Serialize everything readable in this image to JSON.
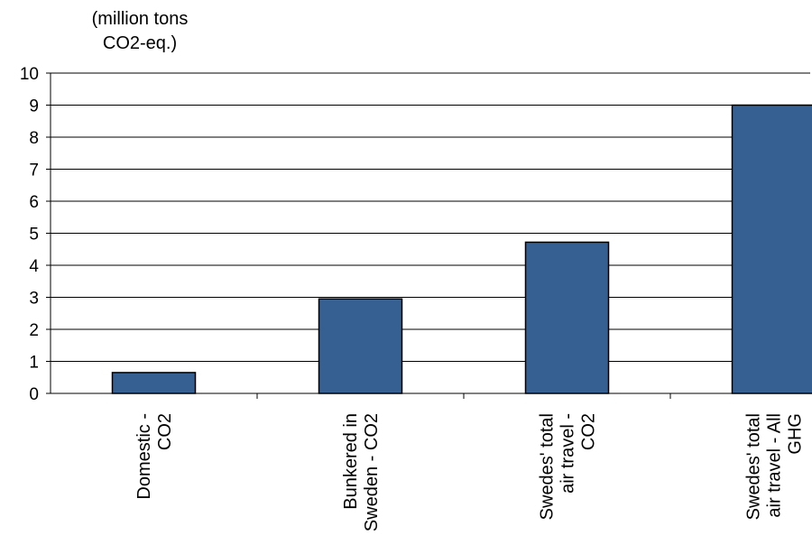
{
  "chart_data": {
    "type": "bar",
    "ylabel": [
      "(million tons",
      "CO2-eq.)"
    ],
    "xlabel": "",
    "ylim": [
      0,
      10
    ],
    "yticks": [
      0,
      1,
      2,
      3,
      4,
      5,
      6,
      7,
      8,
      9,
      10
    ],
    "grid": true,
    "bar_color": "#376092",
    "categories": [
      [
        "Domestic -",
        "CO2"
      ],
      [
        "Bunkered in",
        "Sweden - CO2"
      ],
      [
        "Swedes' total",
        "air travel -",
        "CO2"
      ],
      [
        "Swedes' total",
        "air travel - All",
        "GHG"
      ]
    ],
    "values": [
      0.65,
      2.95,
      4.72,
      9.0
    ]
  }
}
